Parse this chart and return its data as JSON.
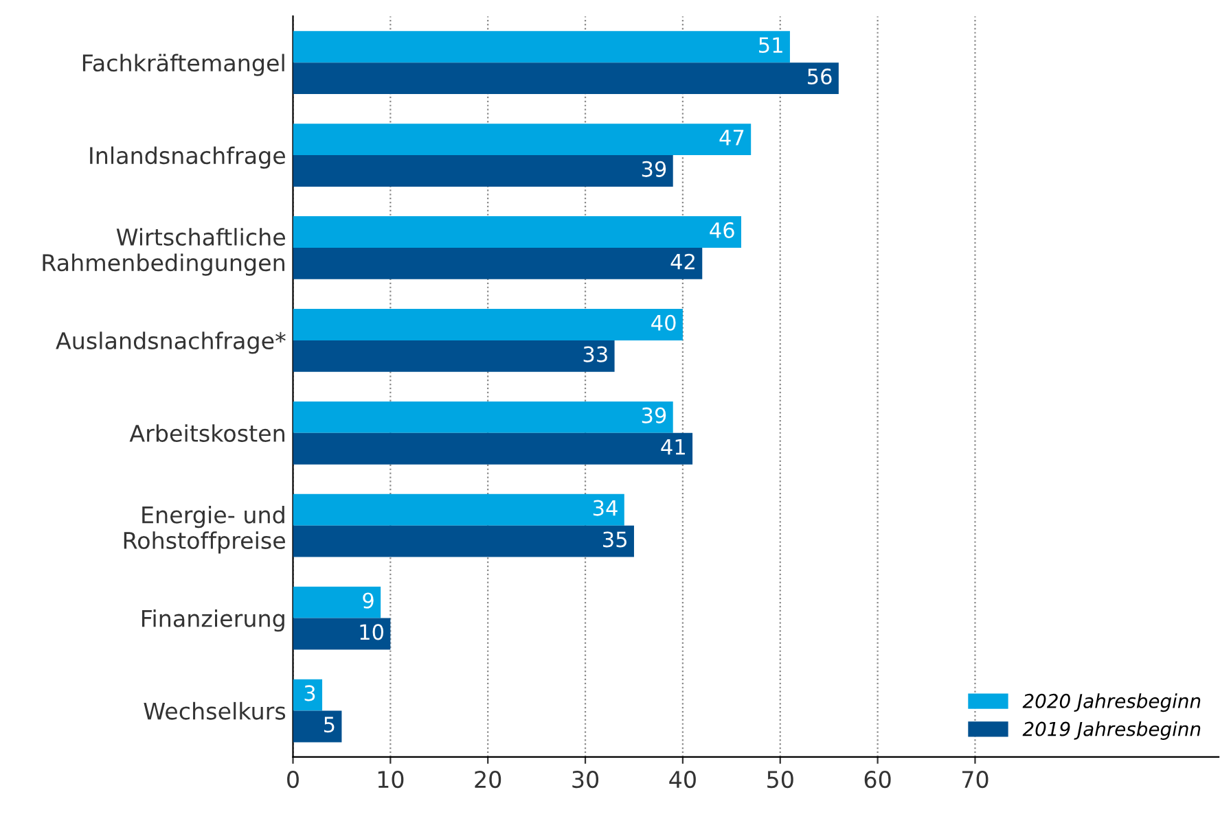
{
  "chart_data": {
    "type": "bar",
    "orientation": "horizontal",
    "categories": [
      "Fachkräftemangel",
      "Inlandsnachfrage",
      "Wirtschaftliche\nRahmenbedingungen",
      "Auslandsnachfrage*",
      "Arbeitskosten",
      "Energie- und\nRohstoffpreise",
      "Finanzierung",
      "Wechselkurs"
    ],
    "series": [
      {
        "name": "2020 Jahresbeginn",
        "color": "#00a6e2",
        "values": [
          51,
          47,
          46,
          40,
          39,
          34,
          9,
          3
        ]
      },
      {
        "name": "2019 Jahresbeginn",
        "color": "#00508f",
        "values": [
          56,
          39,
          42,
          33,
          41,
          35,
          10,
          5
        ]
      }
    ],
    "xlim": [
      0,
      95
    ],
    "xticks": [
      0,
      10,
      20,
      30,
      40,
      50,
      60,
      70
    ],
    "grid": "x",
    "legend": "bottom right",
    "data_labels": true
  }
}
